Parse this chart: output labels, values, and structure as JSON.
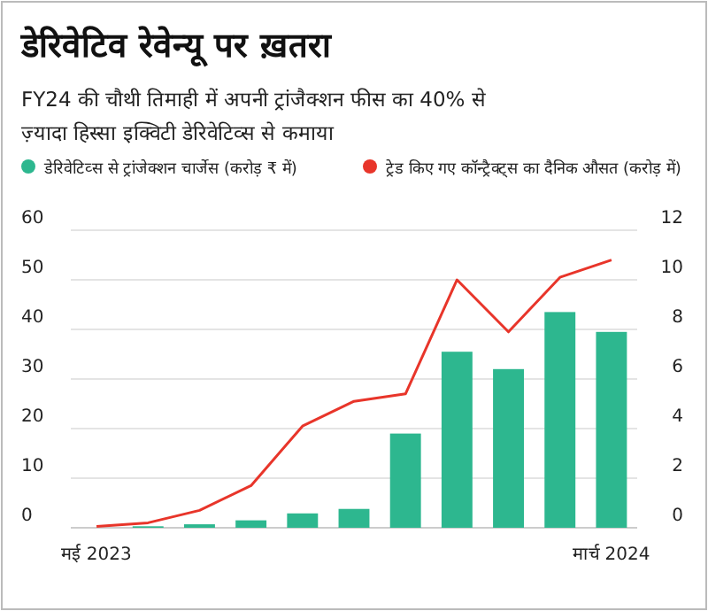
{
  "chart_data": {
    "type": "bar",
    "title": "डेरिवेटिव रेवेन्यू पर ख़तरा",
    "subtitle": "FY24 की चौथी तिमाही में अपनी ट्रांजैक्शन फीस का 40% से ज़्यादा हिस्सा इक्विटी डेरिवेटिव्स से कमाया",
    "categories": [
      "मई 2023",
      null,
      null,
      null,
      null,
      null,
      null,
      null,
      null,
      null,
      "मार्च 2024"
    ],
    "series": [
      {
        "name": "डेरिवेटिव्स से ट्रांजेक्शन चार्जेस (करोड़ ₹ में)",
        "color": "#2db78f",
        "values": [
          null,
          0.3,
          0.7,
          1.5,
          2.9,
          3.8,
          19,
          35.5,
          32,
          43.5,
          39.5
        ]
      },
      {
        "name": "ट्रेड किए गए कॉन्ट्रैक्ट्स का दैनिक औसत (करोड़ में)",
        "type": "line",
        "axis": "y2",
        "color": "#e8352a",
        "values": [
          0.05,
          0.2,
          0.7,
          1.7,
          4.1,
          5.1,
          5.4,
          10,
          7.9,
          10.1,
          10.8
        ]
      }
    ],
    "ylim": [
      0,
      60
    ],
    "yticks": [
      0,
      10,
      20,
      30,
      40,
      50,
      60
    ],
    "y2lim": [
      0,
      12
    ],
    "y2ticks": [
      0,
      2,
      4,
      6,
      8,
      10,
      12
    ],
    "grid": "y",
    "legend": "top",
    "marker": "none"
  }
}
